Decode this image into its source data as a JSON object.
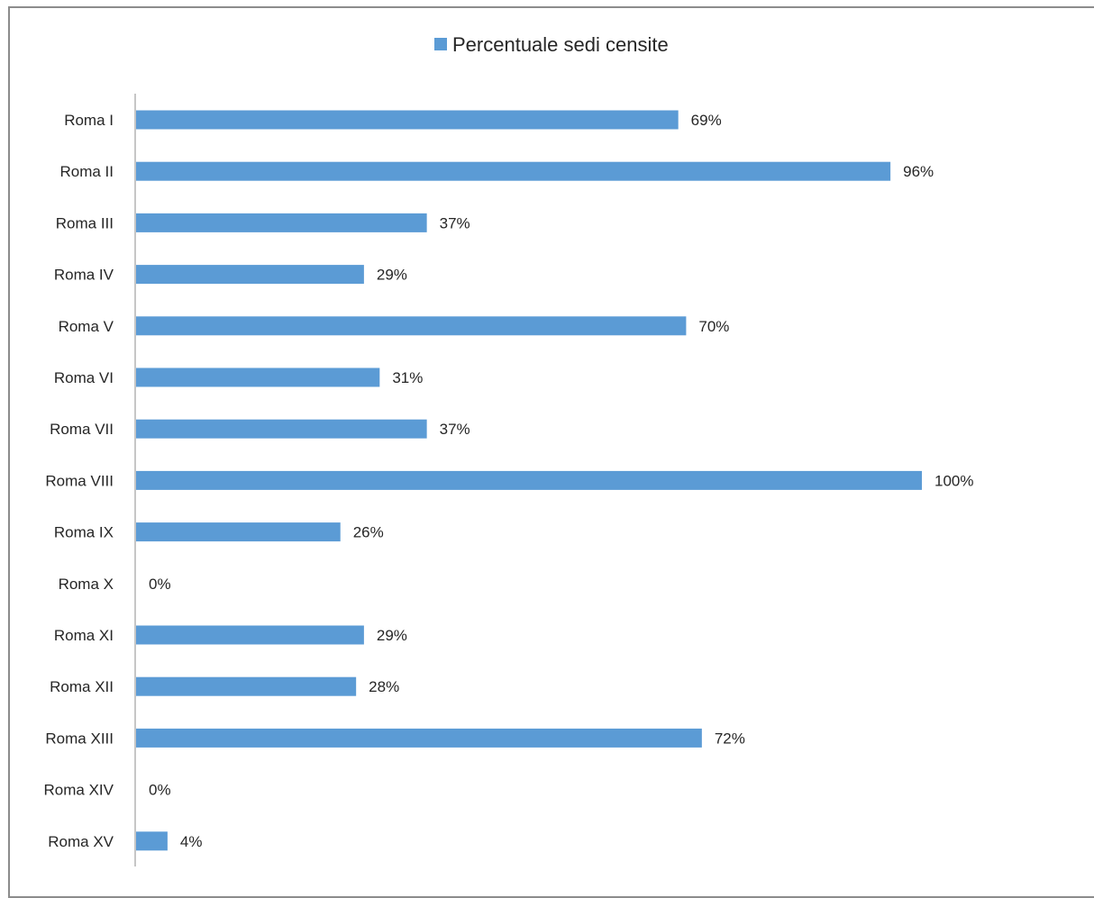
{
  "chart_data": {
    "type": "bar",
    "orientation": "horizontal",
    "categories": [
      "Roma I",
      "Roma II",
      "Roma III",
      "Roma IV",
      "Roma V",
      "Roma VI",
      "Roma VII",
      "Roma VIII",
      "Roma IX",
      "Roma X",
      "Roma XI",
      "Roma XII",
      "Roma XIII",
      "Roma XIV",
      "Roma XV"
    ],
    "series": [
      {
        "name": "Percentuale sedi censite",
        "values": [
          69,
          96,
          37,
          29,
          70,
          31,
          37,
          100,
          26,
          0,
          29,
          28,
          72,
          0,
          4
        ],
        "value_labels": [
          "69%",
          "96%",
          "37%",
          "29%",
          "70%",
          "31%",
          "37%",
          "100%",
          "26%",
          "0%",
          "29%",
          "28%",
          "72%",
          "0%",
          "4%"
        ],
        "color": "#5B9BD5"
      }
    ],
    "xlim": [
      0,
      100
    ],
    "grid": false,
    "legend_position": "top"
  }
}
